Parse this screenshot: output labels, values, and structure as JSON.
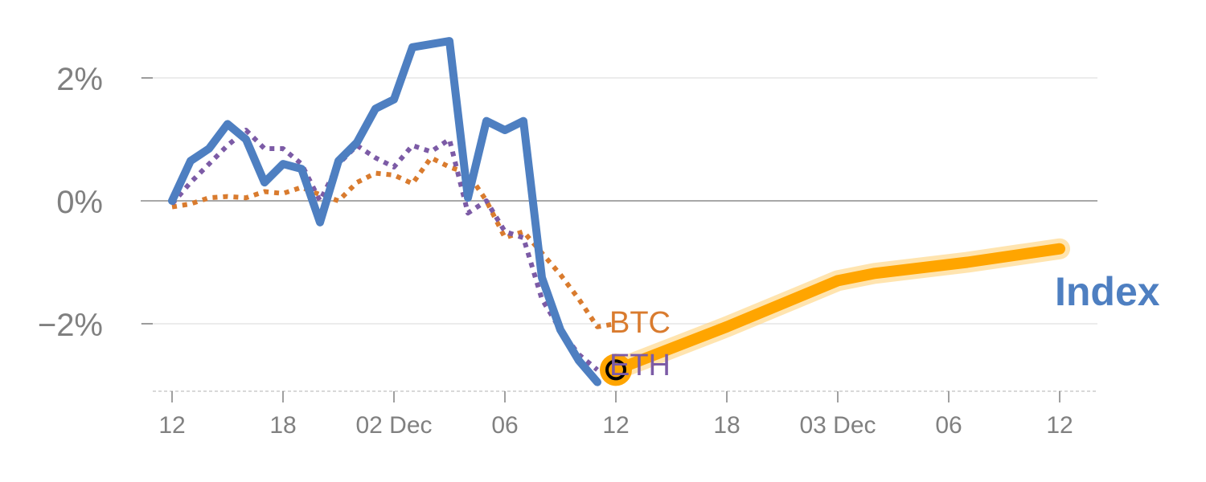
{
  "chart_data": {
    "type": "line",
    "y_ticks": [
      {
        "value": 2,
        "label": "2%"
      },
      {
        "value": 0,
        "label": "0%"
      },
      {
        "value": -2,
        "label": "−2%"
      }
    ],
    "x_ticks": [
      {
        "t": 0,
        "label": "12"
      },
      {
        "t": 6,
        "label": "18"
      },
      {
        "t": 12,
        "label": "02 Dec"
      },
      {
        "t": 18,
        "label": "06"
      },
      {
        "t": 24,
        "label": "12"
      },
      {
        "t": 30,
        "label": "18"
      },
      {
        "t": 36,
        "label": "03 Dec"
      },
      {
        "t": 42,
        "label": "06"
      },
      {
        "t": 48,
        "label": "12"
      }
    ],
    "ylim": [
      -3.1,
      2.9
    ],
    "xlim": [
      -1.5,
      50
    ],
    "grid": true,
    "zero_line": true,
    "series": [
      {
        "name": "BTC",
        "color": "#d97b2e",
        "style": "dotted",
        "points": [
          [
            0,
            -0.1
          ],
          [
            1,
            -0.05
          ],
          [
            2,
            0.05
          ],
          [
            3,
            0.07
          ],
          [
            4,
            0.05
          ],
          [
            5,
            0.15
          ],
          [
            6,
            0.12
          ],
          [
            7,
            0.22
          ],
          [
            8,
            0.1
          ],
          [
            9,
            0.0
          ],
          [
            10,
            0.3
          ],
          [
            11,
            0.45
          ],
          [
            12,
            0.42
          ],
          [
            13,
            0.28
          ],
          [
            14,
            0.7
          ],
          [
            15,
            0.55
          ],
          [
            16,
            0.45
          ],
          [
            17,
            0.0
          ],
          [
            18,
            -0.6
          ],
          [
            19,
            -0.5
          ],
          [
            20,
            -0.85
          ],
          [
            21,
            -1.2
          ],
          [
            22,
            -1.6
          ],
          [
            23,
            -2.05
          ],
          [
            24,
            -2.0
          ]
        ]
      },
      {
        "name": "ETH",
        "color": "#7c5ba6",
        "style": "dotted",
        "points": [
          [
            0,
            -0.05
          ],
          [
            1,
            0.3
          ],
          [
            2,
            0.6
          ],
          [
            3,
            0.9
          ],
          [
            4,
            1.15
          ],
          [
            5,
            0.85
          ],
          [
            6,
            0.85
          ],
          [
            7,
            0.6
          ],
          [
            8,
            0.0
          ],
          [
            9,
            0.6
          ],
          [
            10,
            0.9
          ],
          [
            11,
            0.7
          ],
          [
            12,
            0.55
          ],
          [
            13,
            0.9
          ],
          [
            14,
            0.8
          ],
          [
            15,
            1.0
          ],
          [
            16,
            -0.2
          ],
          [
            17,
            0.0
          ],
          [
            18,
            -0.5
          ],
          [
            19,
            -0.6
          ],
          [
            20,
            -1.6
          ],
          [
            21,
            -2.1
          ],
          [
            22,
            -2.5
          ],
          [
            23,
            -2.75
          ]
        ]
      },
      {
        "name": "Index",
        "color": "#4e7fc1",
        "style": "solid",
        "points": [
          [
            0,
            0.0
          ],
          [
            1,
            0.65
          ],
          [
            2,
            0.85
          ],
          [
            3,
            1.25
          ],
          [
            4,
            1.0
          ],
          [
            5,
            0.3
          ],
          [
            6,
            0.6
          ],
          [
            7,
            0.52
          ],
          [
            8,
            -0.35
          ],
          [
            9,
            0.65
          ],
          [
            10,
            0.95
          ],
          [
            11,
            1.5
          ],
          [
            12,
            1.65
          ],
          [
            13,
            2.5
          ],
          [
            14,
            2.55
          ],
          [
            15,
            2.6
          ],
          [
            16,
            0.05
          ],
          [
            17,
            1.3
          ],
          [
            18,
            1.15
          ],
          [
            19,
            1.3
          ],
          [
            20,
            -1.25
          ],
          [
            21,
            -2.1
          ],
          [
            22,
            -2.6
          ],
          [
            23,
            -2.95
          ]
        ]
      },
      {
        "name": "Index forecast",
        "color": "#ffa500",
        "style": "thick",
        "points": [
          [
            24,
            -2.75
          ],
          [
            30,
            -2.05
          ],
          [
            36,
            -1.3
          ],
          [
            38,
            -1.18
          ],
          [
            43,
            -1.0
          ],
          [
            48,
            -0.78
          ]
        ]
      }
    ],
    "marker": {
      "t": 24,
      "value": -2.75
    },
    "labels": {
      "btc": "BTC",
      "eth": "ETH",
      "index": "Index"
    },
    "colors": {
      "axis_text": "#808080",
      "grid": "#e6e6e6",
      "zero": "#8c8c8c",
      "baseline": "#cccccc"
    }
  }
}
